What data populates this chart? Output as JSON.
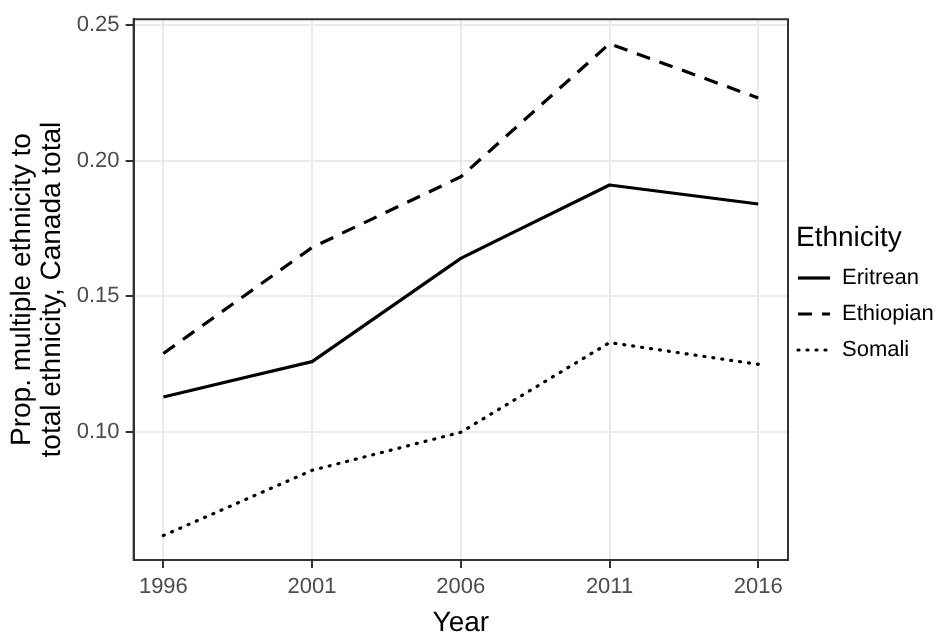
{
  "chart_data": {
    "type": "line",
    "xlabel": "Year",
    "ylabel": "Prop. multiple ethnicity to total ethnicity, Canada total",
    "legend_title": "Ethnicity",
    "x": [
      1996,
      2001,
      2006,
      2011,
      2016
    ],
    "series": [
      {
        "name": "Eritrean",
        "color": "#000000",
        "line_style": "solid",
        "values": [
          0.113,
          0.126,
          0.164,
          0.191,
          0.184
        ]
      },
      {
        "name": "Ethiopian",
        "color": "#000000",
        "line_style": "dashed",
        "values": [
          0.129,
          0.168,
          0.194,
          0.243,
          0.223
        ]
      },
      {
        "name": "Somali",
        "color": "#000000",
        "line_style": "dotted",
        "values": [
          0.062,
          0.086,
          0.1,
          0.133,
          0.125
        ]
      }
    ],
    "xlim": [
      1995,
      2017
    ],
    "xticks": [
      1996,
      2001,
      2006,
      2011,
      2016
    ],
    "ylim": [
      0.053,
      0.252
    ],
    "yticks": [
      {
        "value": 0.1,
        "label": "0.10"
      },
      {
        "value": 0.15,
        "label": "0.15"
      },
      {
        "value": 0.2,
        "label": "0.20"
      },
      {
        "value": 0.25,
        "label": "0.25"
      }
    ],
    "grid": true,
    "legend": "right",
    "marker": "none"
  }
}
